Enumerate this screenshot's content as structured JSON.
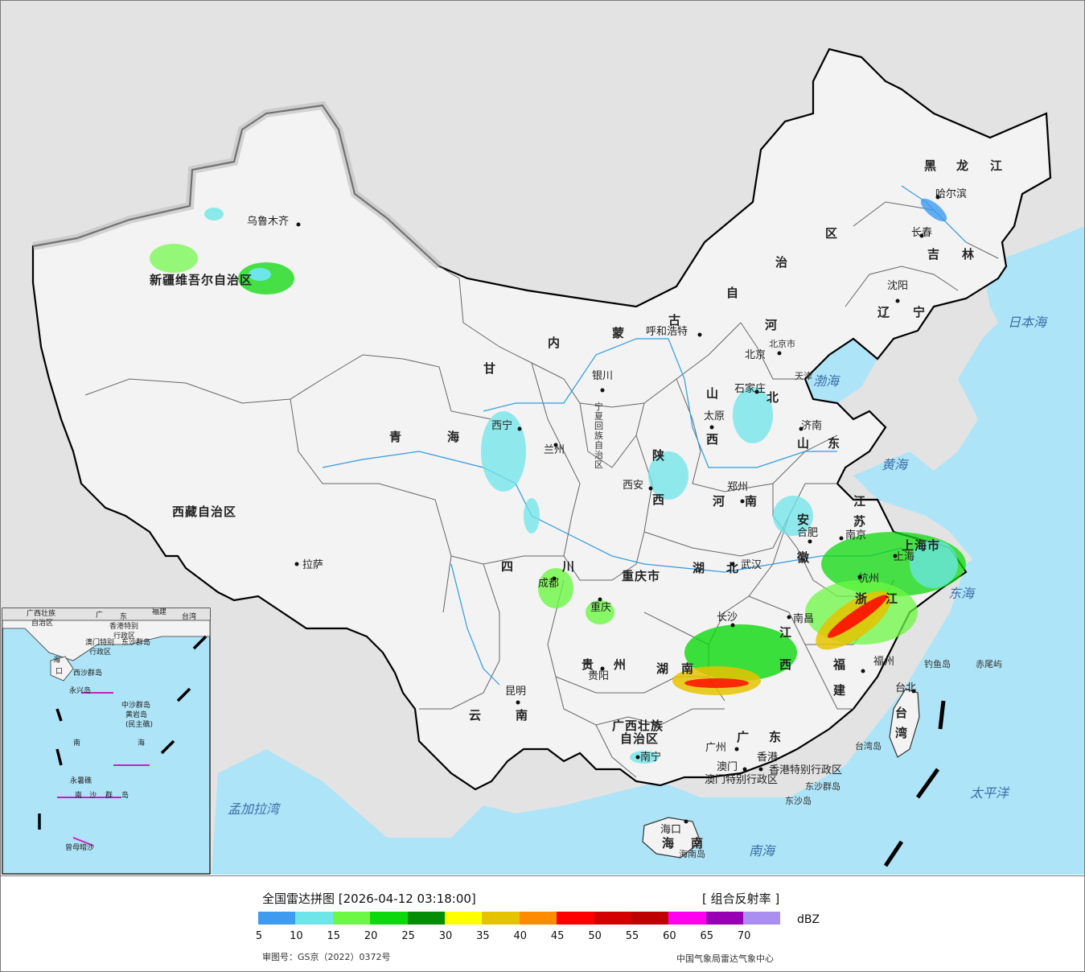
{
  "header": {
    "title": "全国雷达拼图 [2026-04-12 03:18:00]",
    "product": "[ 组合反射率 ]",
    "unit": "dBZ",
    "approval_no": "审图号：GS京（2022）0372号",
    "issuer": "中国气象局雷达气象中心"
  },
  "legend": {
    "colors": [
      "#3d9bf0",
      "#6ee6e9",
      "#6cf843",
      "#0cd90c",
      "#058e05",
      "#ffff00",
      "#e6c300",
      "#ff8c00",
      "#ff0000",
      "#d40000",
      "#bf0000",
      "#ff00f0",
      "#9a00b3",
      "#ab8ff0"
    ],
    "ticks": [
      "5",
      "10",
      "15",
      "20",
      "25",
      "30",
      "35",
      "40",
      "45",
      "50",
      "55",
      "60",
      "65",
      "70"
    ]
  },
  "map": {
    "ocean_color": "#aee4f7",
    "land_color": "#f3f3f3",
    "foreign_land_color": "#e1e1e1",
    "provinces": [
      {
        "name": "新疆维吾尔自治区"
      },
      {
        "name": "西藏自治区"
      },
      {
        "name": "青"
      },
      {
        "name": "海"
      },
      {
        "name": "甘"
      },
      {
        "name": "内"
      },
      {
        "name": "蒙"
      },
      {
        "name": "古"
      },
      {
        "name": "自"
      },
      {
        "name": "治"
      },
      {
        "name": "区"
      },
      {
        "name": "黑"
      },
      {
        "name": "龙"
      },
      {
        "name": "江"
      },
      {
        "name": "吉"
      },
      {
        "name": "林"
      },
      {
        "name": "辽"
      },
      {
        "name": "宁"
      },
      {
        "name": "河"
      },
      {
        "name": "北"
      },
      {
        "name": "山"
      },
      {
        "name": "西"
      },
      {
        "name": "山"
      },
      {
        "name": "东"
      },
      {
        "name": "陕"
      },
      {
        "name": "西"
      },
      {
        "name": "河"
      },
      {
        "name": "南"
      },
      {
        "name": "江"
      },
      {
        "name": "苏"
      },
      {
        "name": "安"
      },
      {
        "name": "徽"
      },
      {
        "name": "湖"
      },
      {
        "name": "北"
      },
      {
        "name": "四"
      },
      {
        "name": "川"
      },
      {
        "name": "重庆市"
      },
      {
        "name": "贵"
      },
      {
        "name": "州"
      },
      {
        "name": "云"
      },
      {
        "name": "南"
      },
      {
        "name": "湖"
      },
      {
        "name": "南"
      },
      {
        "name": "江"
      },
      {
        "name": "西"
      },
      {
        "name": "浙"
      },
      {
        "name": "江"
      },
      {
        "name": "福"
      },
      {
        "name": "建"
      },
      {
        "name": "广西壮族"
      },
      {
        "name": "自治区"
      },
      {
        "name": "广"
      },
      {
        "name": "东"
      },
      {
        "name": "海"
      },
      {
        "name": "南"
      },
      {
        "name": "台"
      },
      {
        "name": "湾"
      },
      {
        "name": "宁夏回族自治区"
      },
      {
        "name": "上海市"
      },
      {
        "name": "北京市"
      },
      {
        "name": "天津"
      },
      {
        "name": "香港特别行政区"
      },
      {
        "name": "澳门特别行政区"
      }
    ],
    "cities": [
      {
        "name": "乌鲁木齐"
      },
      {
        "name": "哈尔滨"
      },
      {
        "name": "长春"
      },
      {
        "name": "沈阳"
      },
      {
        "name": "呼和浩特"
      },
      {
        "name": "北京"
      },
      {
        "name": "石家庄"
      },
      {
        "name": "太原"
      },
      {
        "name": "济南"
      },
      {
        "name": "银川"
      },
      {
        "name": "西宁"
      },
      {
        "name": "兰州"
      },
      {
        "name": "西安"
      },
      {
        "name": "郑州"
      },
      {
        "name": "合肥"
      },
      {
        "name": "南京"
      },
      {
        "name": "上海"
      },
      {
        "name": "杭州"
      },
      {
        "name": "武汉"
      },
      {
        "name": "成都"
      },
      {
        "name": "重庆"
      },
      {
        "name": "长沙"
      },
      {
        "name": "南昌"
      },
      {
        "name": "福州"
      },
      {
        "name": "贵阳"
      },
      {
        "name": "昆明"
      },
      {
        "name": "南宁"
      },
      {
        "name": "广州"
      },
      {
        "name": "澳门"
      },
      {
        "name": "香港"
      },
      {
        "name": "海口"
      },
      {
        "name": "台北"
      },
      {
        "name": "拉萨"
      }
    ],
    "seas": [
      "日本海",
      "渤海",
      "黄海",
      "东海",
      "南海",
      "太平洋",
      "孟加拉湾"
    ],
    "islands": [
      "钓鱼岛",
      "赤尾屿",
      "东沙群岛",
      "东沙岛",
      "台湾岛",
      "海南岛"
    ],
    "inset": {
      "labels": [
        "广西壮族",
        "自治区",
        "广",
        "东",
        "福建",
        "台湾",
        "海",
        "口",
        "香港特别",
        "行政区",
        "澳门特别",
        "行政区",
        "东沙群岛",
        "西沙群岛",
        "永兴岛",
        "中沙群岛",
        "黄岩岛",
        "(民主礁)",
        "南",
        "海",
        "永暑礁",
        "南",
        "沙",
        "群",
        "岛",
        "曾母暗沙"
      ]
    }
  }
}
